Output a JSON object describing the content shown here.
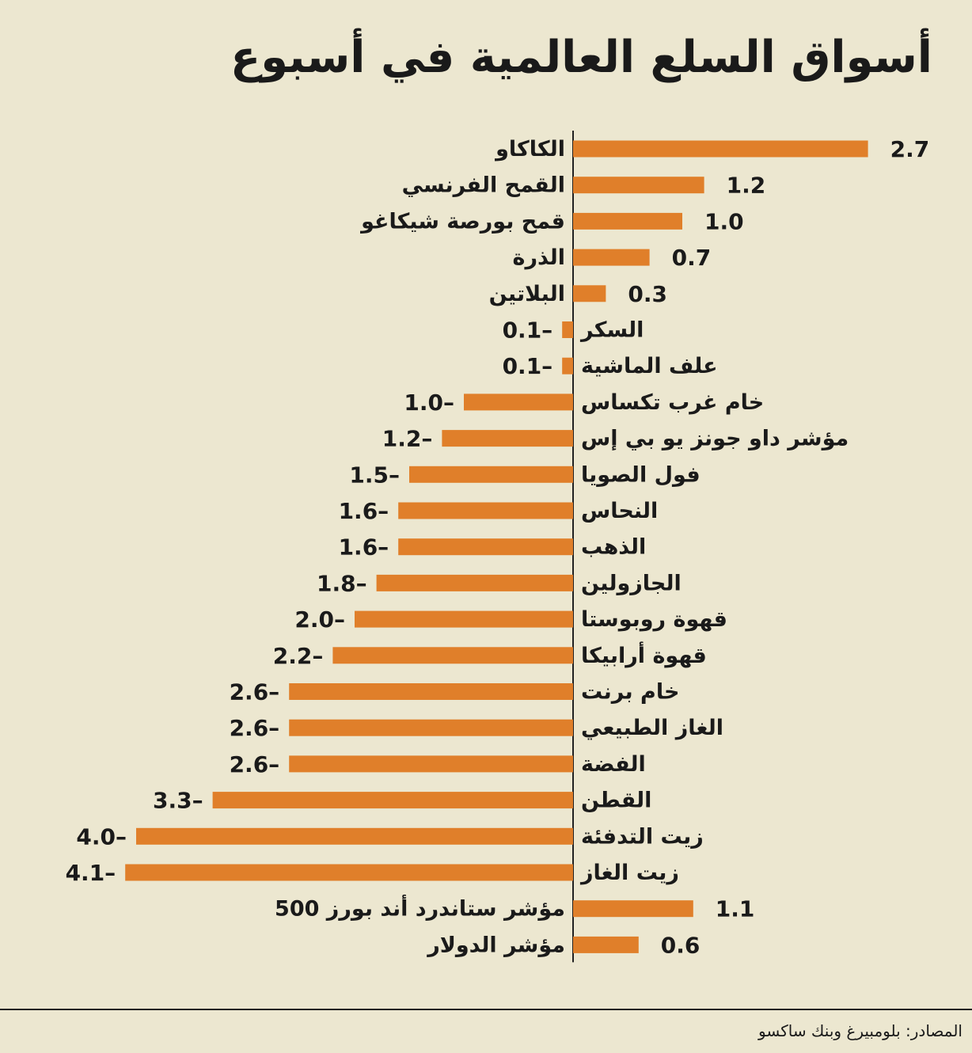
{
  "title": "أسواق السلع العالمية في أسبوع",
  "source": "المصادر: بلومبيرغ وبنك ساكسو",
  "colors": {
    "bar": "#e07f2a",
    "axis": "#222222",
    "background": "#ece7d0"
  },
  "chart_data": {
    "type": "bar",
    "orientation": "horizontal",
    "title": "أسواق السلع العالمية في أسبوع",
    "categories": [
      "الكاكاو",
      "القمح الفرنسي",
      "قمح بورصة شيكاغو",
      "الذرة",
      "البلاتين",
      "السكر",
      "علف الماشية",
      "خام غرب تكساس",
      "مؤشر داو جونز يو بي إس",
      "فول الصويا",
      "النحاس",
      "الذهب",
      "الجازولين",
      "قهوة روبوستا",
      "قهوة أرابيكا",
      "خام برنت",
      "الغاز الطبيعي",
      "الفضة",
      "القطن",
      "زيت التدفئة",
      "زيت الغاز",
      "مؤشر ستاندرد أند بورز 500",
      "مؤشر الدولار"
    ],
    "values": [
      2.7,
      1.2,
      1.0,
      0.7,
      0.3,
      -0.1,
      -0.1,
      -1.0,
      -1.2,
      -1.5,
      -1.6,
      -1.6,
      -1.8,
      -2.0,
      -2.2,
      -2.6,
      -2.6,
      -2.6,
      -3.3,
      -4.0,
      -4.1,
      1.1,
      0.6
    ],
    "labels": [
      "2.7",
      "1.2",
      "1.0",
      "0.7",
      "0.3",
      "0.1–",
      "0.1–",
      "1.0–",
      "1.2–",
      "1.5–",
      "1.6–",
      "1.6–",
      "1.8–",
      "2.0–",
      "2.2–",
      "2.6–",
      "2.6–",
      "2.6–",
      "3.3–",
      "4.0–",
      "4.1–",
      "1.1",
      "0.6"
    ],
    "xlim": [
      -4.1,
      2.7
    ],
    "xlabel": "",
    "ylabel": "",
    "grid": false
  }
}
